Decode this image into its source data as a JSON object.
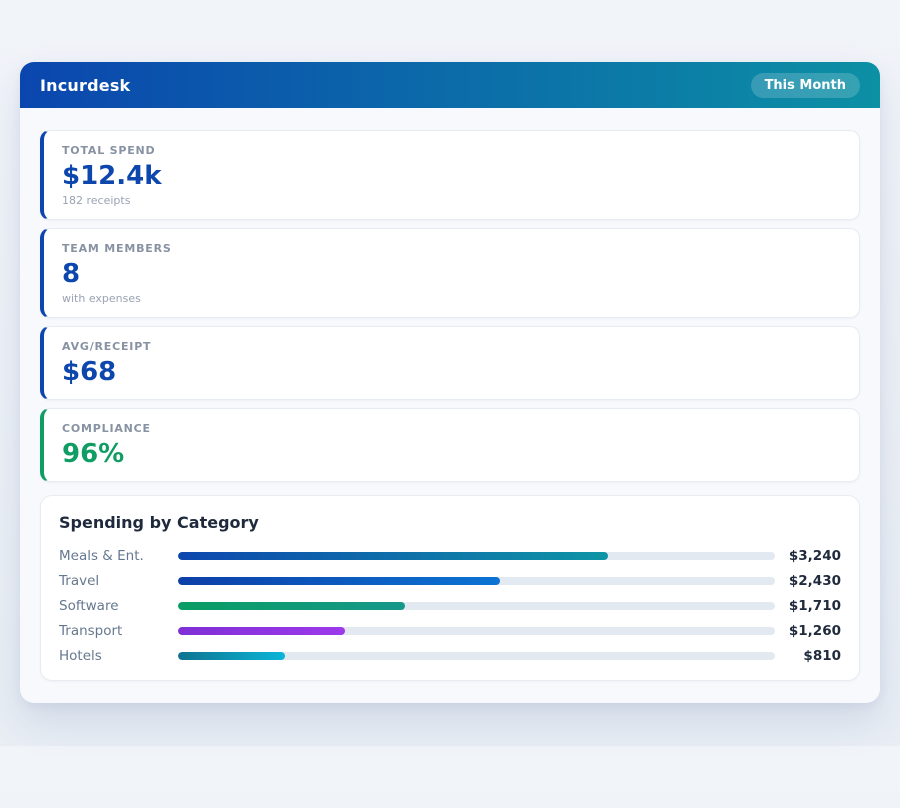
{
  "header": {
    "title": "Incurdesk",
    "period_badge": "This Month"
  },
  "stats": [
    {
      "label": "TOTAL SPEND",
      "value": "$12.4k",
      "sub": "182 receipts",
      "accent": "#0d47ae"
    },
    {
      "label": "TEAM MEMBERS",
      "value": "8",
      "sub": "with expenses",
      "accent": "#0d47ae"
    },
    {
      "label": "AVG/RECEIPT",
      "value": "$68",
      "sub": "",
      "accent": "#0d47ae"
    },
    {
      "label": "COMPLIANCE",
      "value": "96%",
      "sub": "",
      "accent": "#0f9d64"
    }
  ],
  "chart_data": {
    "type": "bar",
    "orientation": "horizontal",
    "title": "Spending by Category",
    "categories": [
      "Meals & Ent.",
      "Travel",
      "Software",
      "Transport",
      "Hotels"
    ],
    "values": [
      3240,
      2430,
      1710,
      1260,
      810
    ],
    "value_labels": [
      "$3,240",
      "$2,430",
      "$1,710",
      "$1,260",
      "$810"
    ],
    "xlim": [
      0,
      4500
    ],
    "grid": false,
    "legend": false,
    "track_color": "#e3e9f0",
    "bar_gradients": [
      [
        "#0d47ae",
        "#0e95a5"
      ],
      [
        "#0d3fa8",
        "#0b74d4"
      ],
      [
        "#0a9d64",
        "#16988a"
      ],
      [
        "#7e2fd6",
        "#9d39ec"
      ],
      [
        "#0e7490",
        "#0cb5d8"
      ]
    ]
  },
  "colors": {
    "header_gradient_start": "#0b46ae",
    "header_gradient_end": "#0c90a4",
    "stat_accent_blue": "#0d47ae",
    "stat_accent_green": "#0f9d64",
    "page_background": "#edf1f7",
    "panel_background": "#f7f9fc"
  }
}
